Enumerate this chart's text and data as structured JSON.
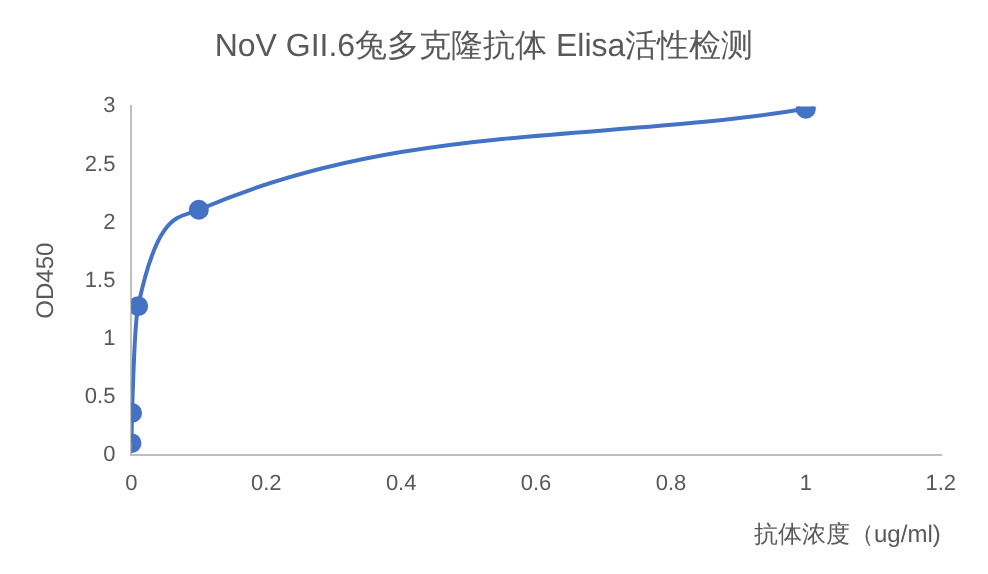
{
  "chart_data": {
    "type": "line",
    "title": "NoV GII.6兔多克隆抗体 Elisa活性检测",
    "xlabel": "抗体浓度（ug/ml)",
    "ylabel": "OD450",
    "x": [
      0.0001,
      0.001,
      0.01,
      0.1,
      1
    ],
    "series": [
      {
        "color": "#4472c4",
        "values": [
          0.1,
          0.36,
          1.28,
          2.11,
          2.98
        ]
      }
    ],
    "xlim": [
      0,
      1.2
    ],
    "xticks": [
      0,
      0.2,
      0.4,
      0.6,
      0.8,
      1,
      1.2
    ],
    "ylim": [
      0,
      3
    ],
    "yticks": [
      0,
      0.5,
      1,
      1.5,
      2,
      2.5,
      3
    ],
    "grid": false,
    "legend": false,
    "marker": "circle",
    "line_style": "solid"
  }
}
